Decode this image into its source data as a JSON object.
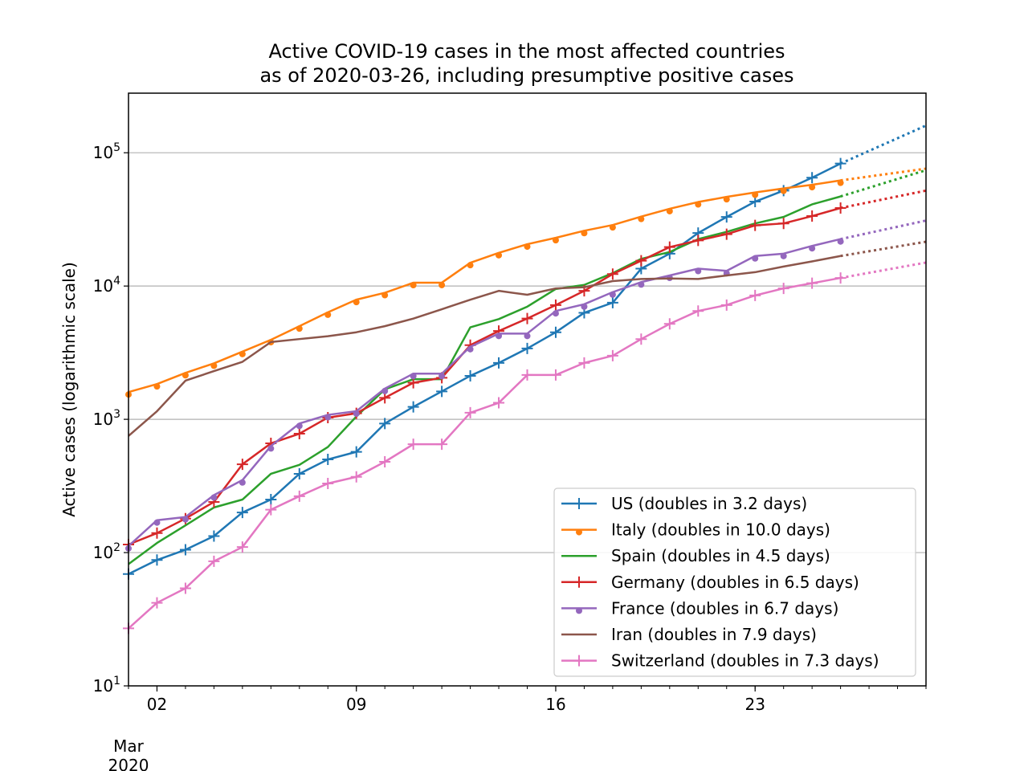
{
  "chart_data": {
    "type": "line",
    "title": [
      "Active COVID-19 cases in the most affected countries",
      "as of 2020-03-26, including presumptive positive cases"
    ],
    "ylabel": "Active cases (logarithmic scale)",
    "xlabel": "",
    "yscale": "log",
    "ylim": [
      10,
      280000
    ],
    "xlim": [
      "2020-03-01",
      "2020-03-29"
    ],
    "x_ticks": [
      {
        "date": "2020-03-02",
        "label": "02"
      },
      {
        "date": "2020-03-09",
        "label": "09"
      },
      {
        "date": "2020-03-16",
        "label": "16"
      },
      {
        "date": "2020-03-23",
        "label": "23"
      }
    ],
    "x_secondary_label": [
      "Mar",
      "2020"
    ],
    "y_ticks": [
      {
        "value": 10,
        "base": "10",
        "exp": "1"
      },
      {
        "value": 100,
        "base": "10",
        "exp": "2"
      },
      {
        "value": 1000,
        "base": "10",
        "exp": "3"
      },
      {
        "value": 10000,
        "base": "10",
        "exp": "4"
      },
      {
        "value": 100000,
        "base": "10",
        "exp": "5"
      }
    ],
    "grid": "horizontal",
    "legend_position": "lower-right",
    "x": [
      "2020-03-01",
      "2020-03-02",
      "2020-03-03",
      "2020-03-04",
      "2020-03-05",
      "2020-03-06",
      "2020-03-07",
      "2020-03-08",
      "2020-03-09",
      "2020-03-10",
      "2020-03-11",
      "2020-03-12",
      "2020-03-13",
      "2020-03-14",
      "2020-03-15",
      "2020-03-16",
      "2020-03-17",
      "2020-03-18",
      "2020-03-19",
      "2020-03-20",
      "2020-03-21",
      "2020-03-22",
      "2020-03-23",
      "2020-03-24",
      "2020-03-25",
      "2020-03-26"
    ],
    "series": [
      {
        "name": "US (doubles in 3.2 days)",
        "color": "#1f77b4",
        "marker": "plus",
        "line": true,
        "values": [
          69,
          88,
          105,
          133,
          200,
          250,
          390,
          500,
          570,
          930,
          1240,
          1620,
          2120,
          2650,
          3400,
          4500,
          6300,
          7500,
          13500,
          17500,
          25000,
          33000,
          43000,
          52000,
          65000,
          83000
        ],
        "projection_end": 160000
      },
      {
        "name": "Italy (doubles in 10.0 days)",
        "color": "#ff7f0e",
        "marker": "dot",
        "line": true,
        "values": [
          1600,
          1840,
          2230,
          2630,
          3220,
          3950,
          5000,
          6350,
          7900,
          8900,
          10590,
          10600,
          14950,
          17740,
          20600,
          23000,
          26000,
          28700,
          33200,
          38000,
          42700,
          46650,
          50400,
          54000,
          57500,
          62000
        ],
        "projection_end": 76000
      },
      {
        "name": "Spain (doubles in 4.5 days)",
        "color": "#2ca02c",
        "marker": "none",
        "line": true,
        "values": [
          82,
          118,
          160,
          218,
          250,
          390,
          455,
          620,
          1050,
          1680,
          2000,
          2000,
          4900,
          5650,
          7000,
          9500,
          10200,
          12500,
          16000,
          18000,
          22500,
          25500,
          29500,
          33000,
          41000,
          47000
        ],
        "projection_end": 74000
      },
      {
        "name": "Germany (doubles in 6.5 days)",
        "color": "#d62728",
        "marker": "plus",
        "line": true,
        "values": [
          115,
          140,
          180,
          240,
          460,
          660,
          780,
          1030,
          1110,
          1450,
          1880,
          2050,
          3600,
          4600,
          5700,
          7200,
          9200,
          12300,
          15500,
          19600,
          22000,
          24500,
          28500,
          29500,
          33500,
          38500
        ],
        "projection_end": 52000
      },
      {
        "name": "France (doubles in 6.7 days)",
        "color": "#9467bd",
        "marker": "dot",
        "line": true,
        "values": [
          112,
          175,
          185,
          270,
          350,
          630,
          930,
          1080,
          1150,
          1700,
          2200,
          2200,
          3500,
          4400,
          4400,
          6500,
          7300,
          9000,
          10700,
          12000,
          13500,
          13000,
          16800,
          17500,
          20000,
          22500
        ],
        "projection_end": 31000
      },
      {
        "name": "Iran (doubles in 7.9 days)",
        "color": "#8c564b",
        "marker": "none",
        "line": true,
        "values": [
          750,
          1150,
          1950,
          2300,
          2700,
          3800,
          4000,
          4200,
          4500,
          5000,
          5700,
          6700,
          7900,
          9200,
          8600,
          9600,
          9800,
          10900,
          11300,
          11400,
          11300,
          12000,
          12700,
          14000,
          15300,
          16800
        ],
        "projection_end": 21500
      },
      {
        "name": "Switzerland (doubles in 7.3 days)",
        "color": "#e377c2",
        "marker": "plus",
        "line": true,
        "values": [
          27,
          42,
          54,
          86,
          110,
          210,
          265,
          330,
          370,
          480,
          650,
          650,
          1120,
          1330,
          2150,
          2150,
          2650,
          3000,
          4000,
          5200,
          6500,
          7200,
          8500,
          9600,
          10500,
          11500
        ],
        "projection_end": 15000
      }
    ]
  }
}
